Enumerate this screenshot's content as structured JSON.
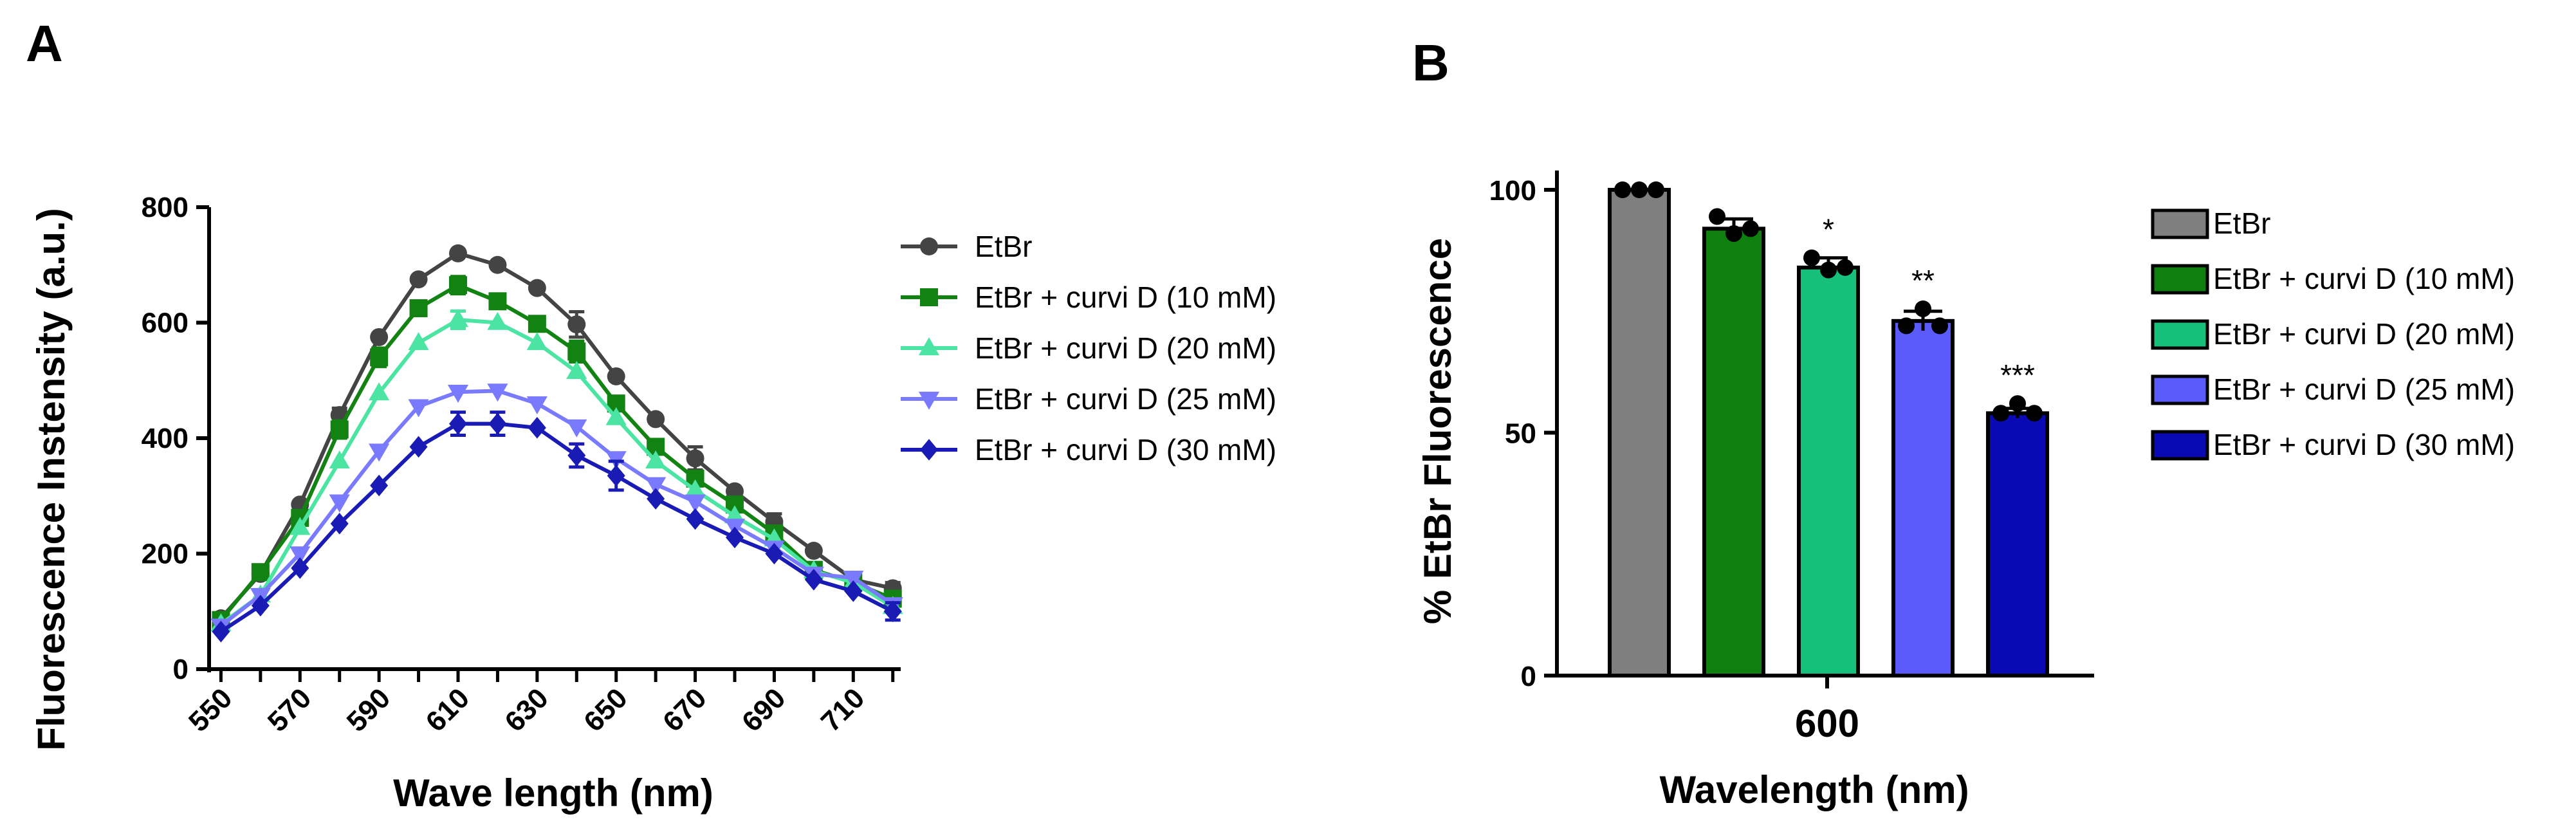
{
  "chart_data": [
    {
      "panel": "A",
      "type": "line",
      "xlabel": "Wave length (nm)",
      "ylabel": "Fluorescence Instensity (a.u.)",
      "xlim": [
        547,
        722
      ],
      "ylim": [
        0,
        800
      ],
      "xticks": [
        "550",
        "570",
        "590",
        "610",
        "630",
        "650",
        "670",
        "690",
        "710"
      ],
      "yticks": [
        "0",
        "200",
        "400",
        "600",
        "800"
      ],
      "x": [
        550,
        560,
        570,
        580,
        590,
        600,
        610,
        620,
        630,
        640,
        650,
        660,
        670,
        680,
        690,
        700,
        710,
        720
      ],
      "legend_position": "right",
      "series": [
        {
          "name": "EtBr",
          "color": "#444444",
          "marker": "circle",
          "values": [
            88,
            165,
            285,
            440,
            575,
            675,
            720,
            700,
            660,
            597,
            507,
            433,
            365,
            308,
            255,
            205,
            155,
            140
          ],
          "errors": [
            0,
            0,
            0,
            12,
            0,
            0,
            0,
            0,
            0,
            22,
            0,
            0,
            20,
            0,
            14,
            0,
            0,
            10
          ]
        },
        {
          "name": "EtBr + curvi D (10 mM)",
          "color": "#128212",
          "marker": "square",
          "values": [
            85,
            168,
            262,
            415,
            540,
            625,
            665,
            637,
            598,
            550,
            460,
            385,
            330,
            285,
            235,
            172,
            150,
            122
          ],
          "errors": [
            0,
            0,
            0,
            15,
            16,
            0,
            15,
            0,
            0,
            18,
            0,
            0,
            0,
            0,
            0,
            0,
            0,
            0
          ]
        },
        {
          "name": "EtBr + curvi D (20 mM)",
          "color": "#4be4a2",
          "marker": "triangle-up",
          "values": [
            78,
            128,
            245,
            360,
            478,
            565,
            605,
            600,
            565,
            515,
            435,
            360,
            310,
            265,
            225,
            170,
            150,
            108
          ],
          "errors": [
            0,
            0,
            0,
            0,
            0,
            0,
            15,
            0,
            0,
            0,
            0,
            0,
            0,
            0,
            0,
            0,
            0,
            0
          ]
        },
        {
          "name": "EtBr + curvi D (25 mM)",
          "color": "#7a7aff",
          "marker": "triangle-down",
          "values": [
            75,
            128,
            200,
            290,
            378,
            455,
            480,
            482,
            460,
            420,
            365,
            320,
            290,
            248,
            210,
            165,
            158,
            112
          ],
          "errors": [
            0,
            0,
            0,
            0,
            0,
            0,
            0,
            0,
            0,
            0,
            0,
            0,
            0,
            0,
            0,
            0,
            0,
            0
          ]
        },
        {
          "name": "EtBr + curvi D (30 mM)",
          "color": "#1a1ab5",
          "marker": "diamond",
          "values": [
            65,
            110,
            175,
            252,
            318,
            385,
            425,
            425,
            418,
            370,
            335,
            295,
            260,
            228,
            200,
            155,
            135,
            100
          ],
          "errors": [
            0,
            0,
            0,
            0,
            0,
            0,
            20,
            20,
            0,
            20,
            25,
            0,
            0,
            0,
            0,
            0,
            0,
            15
          ]
        }
      ]
    },
    {
      "panel": "B",
      "type": "bar",
      "xlabel": "Wavelength (nm)",
      "ylabel": "% EtBr Fluorescence",
      "ylim": [
        0,
        100
      ],
      "yticks": [
        "0",
        "50",
        "100"
      ],
      "group_label": "600",
      "legend_position": "right",
      "series": [
        {
          "name": "EtBr",
          "color": "#7f7f7f",
          "value": 100,
          "error": 0,
          "points": [
            100,
            100,
            100
          ],
          "significance": ""
        },
        {
          "name": "EtBr + curvi D (10 mM)",
          "color": "#0f7f0f",
          "value": 92,
          "error": 2,
          "points": [
            94.5,
            91,
            92
          ],
          "significance": ""
        },
        {
          "name": "EtBr + curvi D (20 mM)",
          "color": "#17c07a",
          "value": 84,
          "error": 2,
          "points": [
            86,
            83.5,
            84
          ],
          "significance": "*"
        },
        {
          "name": "EtBr + curvi D (25 mM)",
          "color": "#5b5bfb",
          "value": 73,
          "error": 2,
          "points": [
            72,
            75.5,
            72
          ],
          "significance": "**"
        },
        {
          "name": "EtBr + curvi D (30 mM)",
          "color": "#0a0ab5",
          "value": 54,
          "error": 1,
          "points": [
            54,
            56,
            54
          ],
          "significance": "***"
        }
      ]
    }
  ]
}
